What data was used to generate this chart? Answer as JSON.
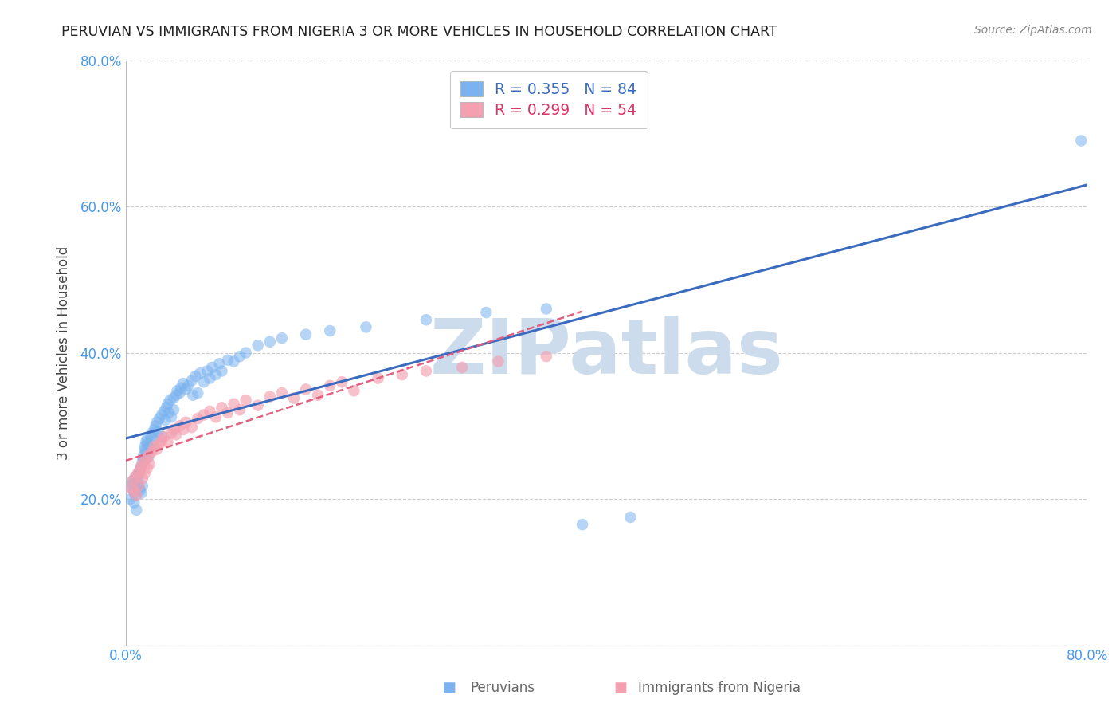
{
  "title": "PERUVIAN VS IMMIGRANTS FROM NIGERIA 3 OR MORE VEHICLES IN HOUSEHOLD CORRELATION CHART",
  "source": "Source: ZipAtlas.com",
  "ylabel": "3 or more Vehicles in Household",
  "xlim": [
    0.0,
    0.8
  ],
  "ylim": [
    0.0,
    0.8
  ],
  "xtick_positions": [
    0.0,
    0.1,
    0.2,
    0.3,
    0.4,
    0.5,
    0.6,
    0.7,
    0.8
  ],
  "xticklabels": [
    "0.0%",
    "",
    "",
    "",
    "",
    "",
    "",
    "",
    "80.0%"
  ],
  "ytick_positions": [
    0.0,
    0.2,
    0.4,
    0.6,
    0.8
  ],
  "yticklabels": [
    "",
    "20.0%",
    "40.0%",
    "60.0%",
    "80.0%"
  ],
  "peruvian_R": 0.355,
  "peruvian_N": 84,
  "nigeria_R": 0.299,
  "nigeria_N": 54,
  "peruvian_color": "#7ab3ef",
  "nigeria_color": "#f4a0b0",
  "line_peruvian_color": "#3a6bbf",
  "line_nigeria_color": "#e06080",
  "line_nigeria_style": "--",
  "watermark": "ZIPatlas",
  "watermark_color": "#ccdcec",
  "background_color": "#ffffff",
  "peruvian_scatter_x": [
    0.004,
    0.005,
    0.006,
    0.006,
    0.007,
    0.007,
    0.008,
    0.008,
    0.009,
    0.009,
    0.01,
    0.01,
    0.011,
    0.011,
    0.012,
    0.012,
    0.013,
    0.013,
    0.014,
    0.014,
    0.015,
    0.015,
    0.016,
    0.016,
    0.017,
    0.017,
    0.018,
    0.018,
    0.019,
    0.02,
    0.021,
    0.022,
    0.023,
    0.024,
    0.025,
    0.026,
    0.027,
    0.028,
    0.03,
    0.03,
    0.032,
    0.033,
    0.034,
    0.035,
    0.036,
    0.037,
    0.038,
    0.04,
    0.04,
    0.042,
    0.043,
    0.045,
    0.046,
    0.048,
    0.05,
    0.052,
    0.055,
    0.056,
    0.058,
    0.06,
    0.062,
    0.065,
    0.068,
    0.07,
    0.072,
    0.075,
    0.078,
    0.08,
    0.085,
    0.09,
    0.095,
    0.1,
    0.11,
    0.12,
    0.13,
    0.15,
    0.17,
    0.2,
    0.25,
    0.3,
    0.35,
    0.38,
    0.42,
    0.795
  ],
  "peruvian_scatter_y": [
    0.2,
    0.215,
    0.22,
    0.225,
    0.195,
    0.21,
    0.205,
    0.23,
    0.185,
    0.218,
    0.222,
    0.228,
    0.215,
    0.235,
    0.212,
    0.24,
    0.208,
    0.245,
    0.218,
    0.252,
    0.26,
    0.255,
    0.268,
    0.272,
    0.278,
    0.265,
    0.282,
    0.275,
    0.258,
    0.27,
    0.285,
    0.29,
    0.28,
    0.295,
    0.3,
    0.305,
    0.292,
    0.31,
    0.315,
    0.285,
    0.32,
    0.308,
    0.325,
    0.33,
    0.318,
    0.335,
    0.312,
    0.338,
    0.322,
    0.342,
    0.348,
    0.345,
    0.352,
    0.358,
    0.35,
    0.355,
    0.362,
    0.342,
    0.368,
    0.345,
    0.372,
    0.36,
    0.375,
    0.365,
    0.38,
    0.37,
    0.385,
    0.375,
    0.39,
    0.388,
    0.395,
    0.4,
    0.41,
    0.415,
    0.42,
    0.425,
    0.43,
    0.435,
    0.445,
    0.455,
    0.46,
    0.165,
    0.175,
    0.69
  ],
  "nigeria_scatter_x": [
    0.005,
    0.006,
    0.007,
    0.008,
    0.009,
    0.01,
    0.011,
    0.012,
    0.013,
    0.014,
    0.015,
    0.016,
    0.017,
    0.018,
    0.019,
    0.02,
    0.022,
    0.024,
    0.026,
    0.028,
    0.03,
    0.032,
    0.035,
    0.038,
    0.04,
    0.042,
    0.045,
    0.048,
    0.05,
    0.055,
    0.06,
    0.065,
    0.07,
    0.075,
    0.08,
    0.085,
    0.09,
    0.095,
    0.1,
    0.11,
    0.12,
    0.13,
    0.14,
    0.15,
    0.16,
    0.17,
    0.18,
    0.19,
    0.21,
    0.23,
    0.25,
    0.28,
    0.31,
    0.35
  ],
  "nigeria_scatter_y": [
    0.215,
    0.225,
    0.21,
    0.23,
    0.205,
    0.235,
    0.218,
    0.24,
    0.245,
    0.228,
    0.25,
    0.235,
    0.255,
    0.242,
    0.26,
    0.248,
    0.265,
    0.272,
    0.268,
    0.275,
    0.28,
    0.285,
    0.278,
    0.29,
    0.295,
    0.288,
    0.3,
    0.295,
    0.305,
    0.298,
    0.31,
    0.315,
    0.32,
    0.312,
    0.325,
    0.318,
    0.33,
    0.322,
    0.335,
    0.328,
    0.34,
    0.345,
    0.338,
    0.35,
    0.342,
    0.355,
    0.36,
    0.348,
    0.365,
    0.37,
    0.375,
    0.38,
    0.388,
    0.395
  ]
}
